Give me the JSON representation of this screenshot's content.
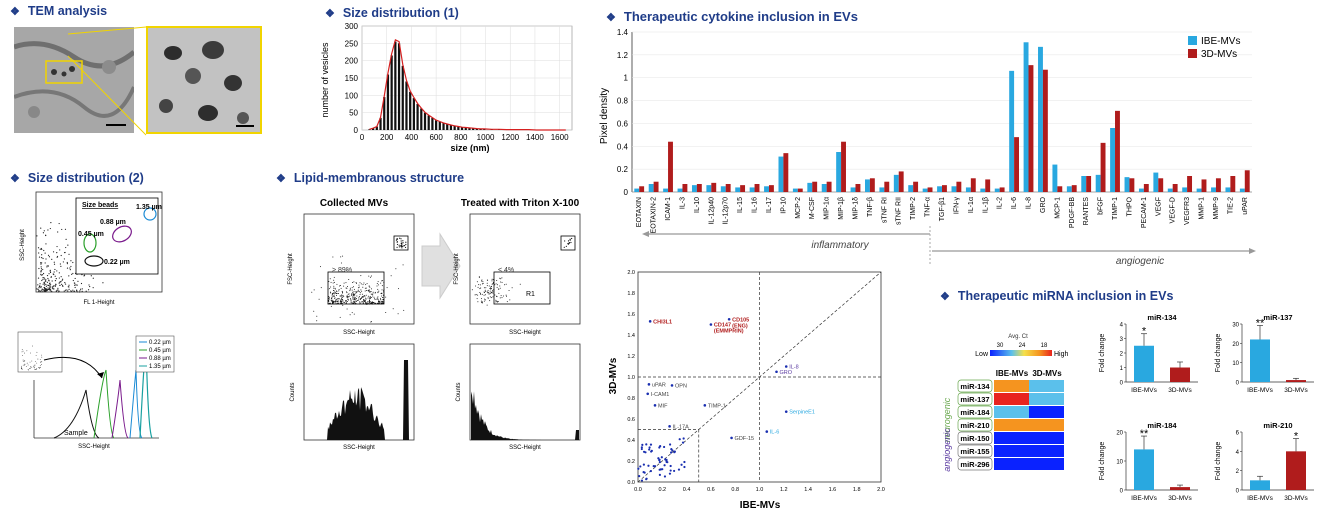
{
  "sections": {
    "tem": "TEM analysis",
    "size1": "Size distribution (1)",
    "cytokine": "Therapeutic cytokine inclusion in EVs",
    "size2": "Size distribution (2)",
    "lipid": "Lipid-membranous structure",
    "mirna": "Therapeutic miRNA inclusion in EVs"
  },
  "colors": {
    "heading": "#1f3c88",
    "ibe": "#29a8e0",
    "d3": "#b01c1c",
    "scatter": "#1a2fb0"
  },
  "size1": {
    "ylabel": "number of vesicles",
    "xlabel": "size (nm)",
    "yticks": [
      "0",
      "50",
      "100",
      "150",
      "200",
      "250",
      "300"
    ],
    "xticks": [
      "0",
      "200",
      "400",
      "600",
      "800",
      "1000",
      "1200",
      "1400",
      "1600"
    ]
  },
  "chart_data": [
    {
      "type": "bar",
      "xlabel": "size (nm)",
      "ylabel": "number of vesicles",
      "xlim": [
        0,
        1700
      ],
      "ylim": [
        0,
        300
      ],
      "x": [
        60,
        90,
        120,
        150,
        180,
        210,
        240,
        270,
        300,
        330,
        360,
        390,
        420,
        450,
        480,
        510,
        540,
        570,
        600,
        630,
        660,
        690,
        720,
        750,
        780,
        810,
        840,
        870,
        900,
        930,
        960,
        990,
        1050,
        1110,
        1170,
        1230,
        1290,
        1350,
        1410,
        1470,
        1530,
        1590,
        1650
      ],
      "values": [
        2,
        5,
        10,
        35,
        95,
        160,
        215,
        255,
        250,
        185,
        140,
        110,
        92,
        75,
        62,
        50,
        42,
        35,
        28,
        24,
        20,
        17,
        14,
        12,
        10,
        8,
        7,
        6,
        5,
        4,
        3,
        3,
        2,
        2,
        1,
        1,
        1,
        1,
        0,
        0,
        0,
        0,
        0
      ]
    },
    {
      "type": "bar",
      "ylabel": "Pixel density",
      "ylim": [
        0,
        1.4
      ],
      "yticks": [
        "0",
        "0.2",
        "0.4",
        "0.6",
        "0.8",
        "1",
        "1.2",
        "1.4"
      ],
      "categories": [
        "EOTAXIN",
        "EOTAXIN-2",
        "ICAM-1",
        "IL-3",
        "IL-10",
        "IL-12p40",
        "IL-12p70",
        "IL-15",
        "IL-16",
        "IL-17",
        "IP-10",
        "MCP-2",
        "M-CSF",
        "MIP-1α",
        "MIP-1β",
        "MIP-1δ",
        "TNF-β",
        "sTNF RI",
        "sTNF RII",
        "TIMP-2",
        "TNF-α",
        "TGF-β1",
        "IFN-γ",
        "IL-1α",
        "IL-1β",
        "IL-2",
        "IL-6",
        "IL-8",
        "GRO",
        "MCP-1",
        "PDGF-BB",
        "RANTES",
        "bFGF",
        "TIMP-1",
        "THPO",
        "PECAM-1",
        "VEGF",
        "VEGF-D",
        "VEGFR3",
        "MMP-1",
        "MMP-9",
        "TIE-2",
        "uPAR"
      ],
      "series": [
        {
          "name": "IBE-MVs",
          "values": [
            0.03,
            0.07,
            0.03,
            0.03,
            0.06,
            0.06,
            0.05,
            0.04,
            0.04,
            0.05,
            0.31,
            0.03,
            0.08,
            0.07,
            0.35,
            0.04,
            0.11,
            0.04,
            0.15,
            0.06,
            0.03,
            0.05,
            0.05,
            0.04,
            0.03,
            0.03,
            1.06,
            1.31,
            1.27,
            0.24,
            0.05,
            0.14,
            0.15,
            0.56,
            0.13,
            0.03,
            0.17,
            0.03,
            0.04,
            0.03,
            0.04,
            0.04,
            0.03
          ]
        },
        {
          "name": "3D-MVs",
          "values": [
            0.05,
            0.09,
            0.44,
            0.07,
            0.07,
            0.08,
            0.07,
            0.06,
            0.07,
            0.06,
            0.34,
            0.03,
            0.09,
            0.09,
            0.44,
            0.07,
            0.12,
            0.09,
            0.18,
            0.09,
            0.04,
            0.06,
            0.09,
            0.12,
            0.11,
            0.04,
            0.48,
            1.11,
            1.07,
            0.05,
            0.06,
            0.14,
            0.43,
            0.71,
            0.12,
            0.07,
            0.12,
            0.07,
            0.14,
            0.11,
            0.12,
            0.14,
            0.19
          ]
        }
      ],
      "groups": [
        "inflammatory",
        "angiogenic"
      ]
    },
    {
      "type": "scatter",
      "xlabel": "IBE-MVs",
      "ylabel": "3D-MVs",
      "xlim": [
        0,
        2.0
      ],
      "ylim": [
        0,
        2.0
      ],
      "ticks": [
        "0.0",
        "0.2",
        "0.4",
        "0.6",
        "0.8",
        "1.0",
        "1.2",
        "1.4",
        "1.6",
        "1.8",
        "2.0"
      ],
      "labeled_points": [
        {
          "label": "CHI3L1",
          "x": 0.1,
          "y": 1.53,
          "color": "#b01c1c"
        },
        {
          "label": "CD105 (ENG)",
          "x": 0.75,
          "y": 1.55,
          "color": "#b01c1c"
        },
        {
          "label": "CD147 (EMMPRIN)",
          "x": 0.6,
          "y": 1.5,
          "color": "#b01c1c"
        },
        {
          "label": "IL-8",
          "x": 1.22,
          "y": 1.1,
          "color": "#5a3aa0"
        },
        {
          "label": "GRO",
          "x": 1.14,
          "y": 1.05,
          "color": "#5a3aa0"
        },
        {
          "label": "uPAR",
          "x": 0.09,
          "y": 0.93,
          "color": "#444"
        },
        {
          "label": "OPN",
          "x": 0.28,
          "y": 0.92,
          "color": "#444"
        },
        {
          "label": "I-CAM1",
          "x": 0.08,
          "y": 0.84,
          "color": "#444"
        },
        {
          "label": "MIF",
          "x": 0.14,
          "y": 0.73,
          "color": "#444"
        },
        {
          "label": "TIMP-1",
          "x": 0.55,
          "y": 0.73,
          "color": "#444"
        },
        {
          "label": "SerpineE1",
          "x": 1.22,
          "y": 0.67,
          "color": "#29a8e0"
        },
        {
          "label": "IL-17A",
          "x": 0.26,
          "y": 0.53,
          "color": "#444"
        },
        {
          "label": "IL-6",
          "x": 1.06,
          "y": 0.48,
          "color": "#29a8e0"
        },
        {
          "label": "GDF-15",
          "x": 0.77,
          "y": 0.42,
          "color": "#444"
        }
      ]
    },
    {
      "type": "bar",
      "title": "miR-134",
      "ylabel": "Fold change",
      "categories": [
        "IBE-MVs",
        "3D-MVs"
      ],
      "values": [
        2.5,
        1.0
      ],
      "ylim": [
        0,
        4
      ],
      "yticks": [
        "0",
        "1",
        "2",
        "3",
        "4"
      ],
      "significance": [
        "*",
        ""
      ]
    },
    {
      "type": "bar",
      "title": "miR-137",
      "ylabel": "Fold change",
      "categories": [
        "IBE-MVs",
        "3D-MVs"
      ],
      "values": [
        22,
        1
      ],
      "ylim": [
        0,
        30
      ],
      "yticks": [
        "0",
        "10",
        "20",
        "30"
      ],
      "significance": [
        "**",
        ""
      ]
    },
    {
      "type": "bar",
      "title": "miR-184",
      "ylabel": "Fold change",
      "categories": [
        "IBE-MVs",
        "3D-MVs"
      ],
      "values": [
        14,
        1
      ],
      "ylim": [
        0,
        20
      ],
      "yticks": [
        "0",
        "10",
        "20"
      ],
      "significance": [
        "**",
        ""
      ]
    },
    {
      "type": "bar",
      "title": "miR-210",
      "ylabel": "Fold change",
      "categories": [
        "IBE-MVs",
        "3D-MVs"
      ],
      "values": [
        1,
        4
      ],
      "ylim": [
        0,
        6
      ],
      "yticks": [
        "0",
        "2",
        "4",
        "6"
      ],
      "significance": [
        "",
        "*"
      ]
    }
  ],
  "cytokine": {
    "legend": [
      "IBE-MVs",
      "3D-MVs"
    ],
    "groups": [
      "inflammatory",
      "angiogenic"
    ]
  },
  "scatter": {
    "xlabel": "IBE-MVs",
    "ylabel": "3D-MVs"
  },
  "size2": {
    "ylabel": "SSC-Height",
    "xlabel": "FL 1-Height",
    "beads_title": "Size beads",
    "labels": [
      "0.88 µm",
      "1.35 µm",
      "0.45 µm",
      "0.22 µm"
    ],
    "legend": [
      "0.22 µm",
      "0.45 µm",
      "0.88 µm",
      "1.35 µm"
    ],
    "sample": "Sample",
    "hist_xlabel": "SSC-Height"
  },
  "lipid": {
    "collected": "Collected MVs",
    "treated": "Treated with Triton X-100",
    "fsc": "FSC-Height",
    "ssc": "SSC-Height",
    "counts": "Counts",
    "gate1": "> 89%",
    "gate2": "< 4%",
    "r1": "R1"
  },
  "mirna": {
    "scale_title": "Avg. Ct",
    "scale_ticks": [
      "30",
      "24",
      "18"
    ],
    "scale_low": "Low",
    "scale_high": "High",
    "col_headers": [
      "IBE-MVs",
      "3D-MVs"
    ],
    "rows": [
      "miR-134",
      "miR-137",
      "miR-184",
      "miR-210",
      "miR-150",
      "miR-155",
      "miR-296"
    ],
    "neurogenic": "neurogenic",
    "angiogenic": "angiogenic",
    "heat": [
      [
        "#f5941f",
        "#5bc0eb"
      ],
      [
        "#e8231e",
        "#5bc0eb"
      ],
      [
        "#5bc0eb",
        "#0a22ff"
      ],
      [
        "#f5941f",
        "#f5941f"
      ],
      [
        "#0a22ff",
        "#0a22ff"
      ],
      [
        "#0a22ff",
        "#0a22ff"
      ],
      [
        "#0a22ff",
        "#0a22ff"
      ]
    ]
  }
}
